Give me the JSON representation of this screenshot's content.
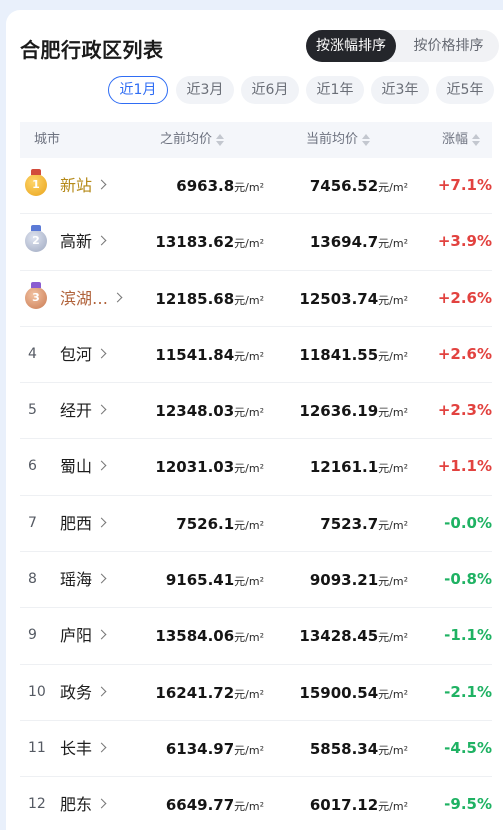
{
  "title": "合肥行政区列表",
  "sort": {
    "active": "按涨幅排序",
    "inactive": "按价格排序"
  },
  "periods": [
    "近1月",
    "近3月",
    "近6月",
    "近1年",
    "近3年",
    "近5年"
  ],
  "active_period": 0,
  "table": {
    "headers": {
      "city": "城市",
      "prev": "之前均价",
      "curr": "当前均价",
      "change": "涨幅"
    },
    "unit": "元/m²",
    "rows": [
      {
        "rank": "1",
        "city": "新站",
        "prev": "6963.8",
        "curr": "7456.52",
        "change": "+7.1%",
        "dir": "up"
      },
      {
        "rank": "2",
        "city": "高新",
        "prev": "13183.62",
        "curr": "13694.7",
        "change": "+3.9%",
        "dir": "up"
      },
      {
        "rank": "3",
        "city": "滨湖…",
        "prev": "12185.68",
        "curr": "12503.74",
        "change": "+2.6%",
        "dir": "up"
      },
      {
        "rank": "4",
        "city": "包河",
        "prev": "11541.84",
        "curr": "11841.55",
        "change": "+2.6%",
        "dir": "up"
      },
      {
        "rank": "5",
        "city": "经开",
        "prev": "12348.03",
        "curr": "12636.19",
        "change": "+2.3%",
        "dir": "up"
      },
      {
        "rank": "6",
        "city": "蜀山",
        "prev": "12031.03",
        "curr": "12161.1",
        "change": "+1.1%",
        "dir": "up"
      },
      {
        "rank": "7",
        "city": "肥西",
        "prev": "7526.1",
        "curr": "7523.7",
        "change": "-0.0%",
        "dir": "down"
      },
      {
        "rank": "8",
        "city": "瑶海",
        "prev": "9165.41",
        "curr": "9093.21",
        "change": "-0.8%",
        "dir": "down"
      },
      {
        "rank": "9",
        "city": "庐阳",
        "prev": "13584.06",
        "curr": "13428.45",
        "change": "-1.1%",
        "dir": "down"
      },
      {
        "rank": "10",
        "city": "政务",
        "prev": "16241.72",
        "curr": "15900.54",
        "change": "-2.1%",
        "dir": "down"
      },
      {
        "rank": "11",
        "city": "长丰",
        "prev": "6134.97",
        "curr": "5858.34",
        "change": "-4.5%",
        "dir": "down"
      },
      {
        "rank": "12",
        "city": "肥东",
        "prev": "6649.77",
        "curr": "6017.12",
        "change": "-9.5%",
        "dir": "down"
      }
    ]
  },
  "colors": {
    "up": "#e2423f",
    "down": "#1fb263",
    "accent": "#2f6df4"
  },
  "icons": {
    "medal": "medal-icon",
    "chevron": "chevron-right-icon",
    "sort": "sort-arrows-icon"
  }
}
